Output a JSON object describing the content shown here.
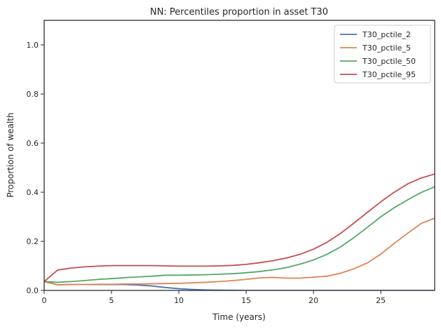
{
  "chart_data": {
    "type": "line",
    "title": "NN: Percentiles proportion in asset T30",
    "xlabel": "Time (years)",
    "ylabel": "Proportion of wealth",
    "xlim": [
      0,
      29
    ],
    "ylim": [
      0,
      1.1
    ],
    "xticks": [
      0,
      5,
      10,
      15,
      20,
      25
    ],
    "yticks": [
      0.0,
      0.2,
      0.4,
      0.6,
      0.8,
      1.0
    ],
    "ytick_labels": [
      "0.0",
      "0.2",
      "0.4",
      "0.6",
      "0.8",
      "1.0"
    ],
    "grid": false,
    "legend_position": "top-right",
    "x": [
      0,
      1,
      2,
      3,
      4,
      5,
      6,
      7,
      8,
      9,
      10,
      11,
      12,
      13,
      14,
      15,
      16,
      17,
      18,
      19,
      20,
      21,
      22,
      23,
      24,
      25,
      26,
      27,
      28,
      29
    ],
    "series": [
      {
        "name": "T30_pctile_2",
        "color": "#4c72b0",
        "values": [
          0.036,
          0.023,
          0.024,
          0.024,
          0.024,
          0.024,
          0.024,
          0.022,
          0.018,
          0.012,
          0.007,
          0.004,
          0.002,
          0.001,
          0.0005,
          0.0,
          0.0,
          0.0,
          0.0,
          0.0,
          0.0,
          0.0,
          0.0,
          0.0,
          0.0,
          0.0,
          0.0,
          0.0,
          0.0,
          0.0
        ]
      },
      {
        "name": "T30_pctile_5",
        "color": "#dd8452",
        "values": [
          0.036,
          0.023,
          0.024,
          0.024,
          0.025,
          0.025,
          0.026,
          0.026,
          0.027,
          0.028,
          0.029,
          0.031,
          0.033,
          0.036,
          0.04,
          0.045,
          0.051,
          0.053,
          0.05,
          0.05,
          0.054,
          0.058,
          0.07,
          0.088,
          0.112,
          0.148,
          0.192,
          0.233,
          0.273,
          0.294
        ]
      },
      {
        "name": "T30_pctile_50",
        "color": "#55a868",
        "values": [
          0.036,
          0.033,
          0.036,
          0.04,
          0.045,
          0.048,
          0.052,
          0.055,
          0.058,
          0.062,
          0.062,
          0.063,
          0.064,
          0.066,
          0.068,
          0.072,
          0.077,
          0.084,
          0.093,
          0.107,
          0.124,
          0.147,
          0.177,
          0.215,
          0.257,
          0.3,
          0.337,
          0.369,
          0.399,
          0.422
        ]
      },
      {
        "name": "T30_pctile_95",
        "color": "#c44e52",
        "values": [
          0.036,
          0.083,
          0.091,
          0.096,
          0.099,
          0.101,
          0.101,
          0.101,
          0.101,
          0.1,
          0.099,
          0.099,
          0.099,
          0.1,
          0.102,
          0.106,
          0.113,
          0.121,
          0.132,
          0.147,
          0.168,
          0.196,
          0.232,
          0.274,
          0.318,
          0.361,
          0.4,
          0.434,
          0.458,
          0.474
        ]
      }
    ]
  }
}
